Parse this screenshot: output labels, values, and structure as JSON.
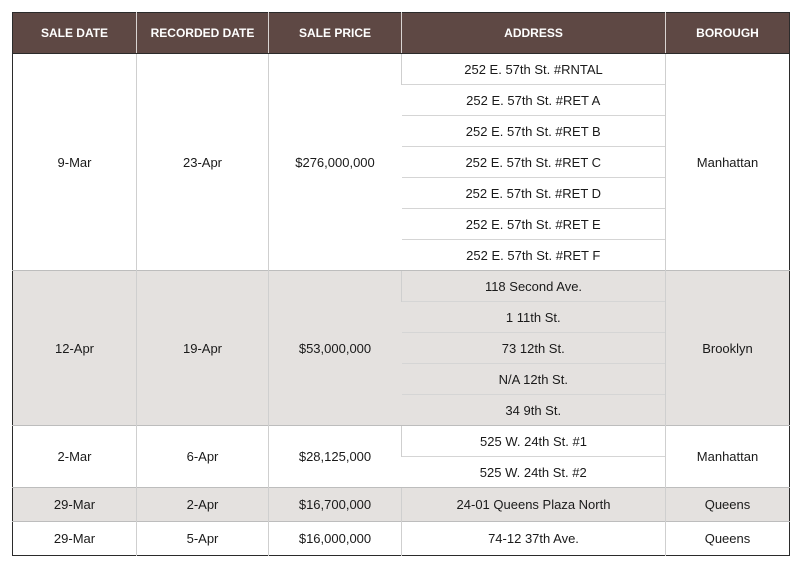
{
  "table": {
    "headers": {
      "sale_date": "SALE DATE",
      "recorded_date": "RECORDED DATE",
      "sale_price": "SALE PRICE",
      "address": "ADDRESS",
      "borough": "BOROUGH"
    },
    "groups": [
      {
        "sale_date": "9-Mar",
        "recorded_date": "23-Apr",
        "sale_price": "$276,000,000",
        "borough": "Manhattan",
        "addresses": [
          "252 E. 57th St. #RNTAL",
          "252 E. 57th St. #RET A",
          "252 E. 57th St. #RET B",
          "252 E. 57th St. #RET C",
          "252 E. 57th St. #RET D",
          "252 E. 57th St. #RET E",
          "252 E. 57th St. #RET F"
        ]
      },
      {
        "sale_date": "12-Apr",
        "recorded_date": "19-Apr",
        "sale_price": "$53,000,000",
        "borough": "Brooklyn",
        "addresses": [
          "118 Second Ave.",
          "1 11th St.",
          "73 12th St.",
          "N/A 12th St.",
          "34 9th St."
        ]
      },
      {
        "sale_date": "2-Mar",
        "recorded_date": "6-Apr",
        "sale_price": "$28,125,000",
        "borough": "Manhattan",
        "addresses": [
          "525 W. 24th St. #1",
          "525 W. 24th St. #2"
        ]
      },
      {
        "sale_date": "29-Mar",
        "recorded_date": "2-Apr",
        "sale_price": "$16,700,000",
        "borough": "Queens",
        "addresses": [
          "24-01 Queens Plaza North"
        ]
      },
      {
        "sale_date": "29-Mar",
        "recorded_date": "5-Apr",
        "sale_price": "$16,000,000",
        "borough": "Queens",
        "addresses": [
          "74-12 37th Ave."
        ]
      }
    ]
  }
}
